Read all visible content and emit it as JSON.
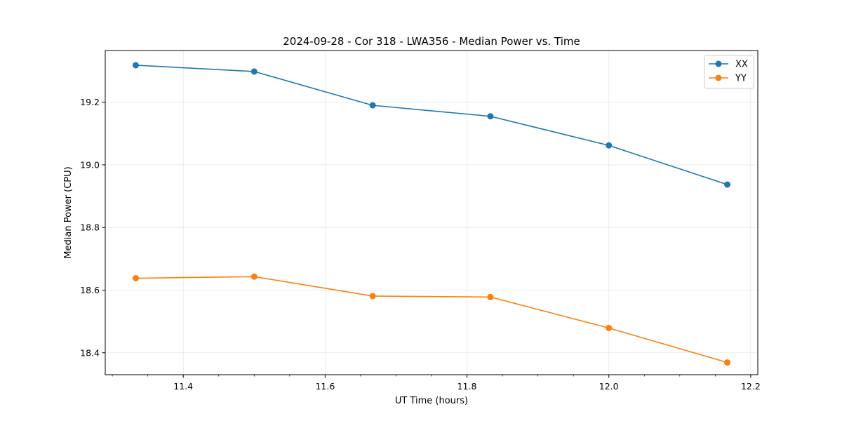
{
  "chart_data": {
    "type": "line",
    "title": "2024-09-28 - Cor 318 - LWA356 - Median Power vs. Time",
    "xlabel": "UT Time (hours)",
    "ylabel": "Median Power (CPU)",
    "xlim": [
      11.29,
      12.21
    ],
    "ylim": [
      18.33,
      19.365
    ],
    "xticks": [
      11.4,
      11.6,
      11.8,
      12.0,
      12.2
    ],
    "xtick_labels": [
      "11.4",
      "11.6",
      "11.8",
      "12.0",
      "12.2"
    ],
    "xminor_step": 0.05,
    "yticks": [
      18.4,
      18.6,
      18.8,
      19.0,
      19.2
    ],
    "ytick_labels": [
      "18.4",
      "18.6",
      "18.8",
      "19.0",
      "19.2"
    ],
    "grid": true,
    "legend_position": "top-right",
    "x": [
      11.333,
      11.5,
      11.667,
      11.833,
      12.0,
      12.167
    ],
    "series": [
      {
        "name": "XX",
        "color": "#1f77b4",
        "values": [
          19.318,
          19.298,
          19.19,
          19.155,
          19.062,
          18.937
        ]
      },
      {
        "name": "YY",
        "color": "#ff7f0e",
        "values": [
          18.638,
          18.643,
          18.581,
          18.578,
          18.479,
          18.369
        ]
      }
    ]
  }
}
